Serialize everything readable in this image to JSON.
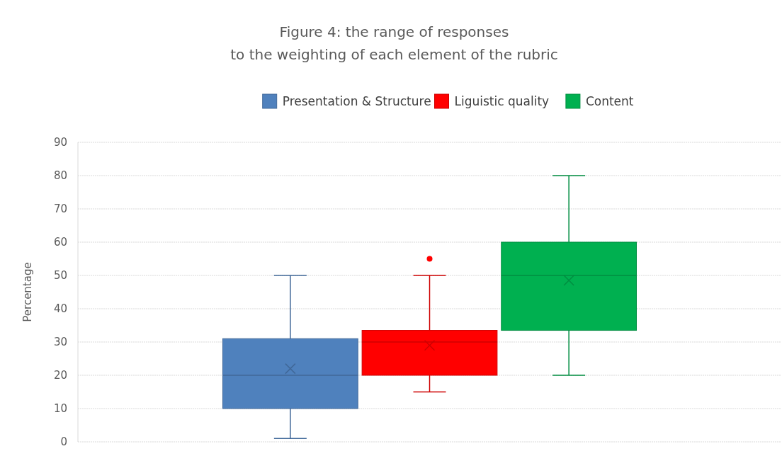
{
  "chart_data": {
    "type": "box",
    "title": "Figure 4: the range of responses\nto the weighting of each element of the rubric",
    "ylabel": "Percentage",
    "categories": [
      null
    ],
    "series": [
      {
        "name": "Presentation & Structure",
        "color": "#4f81bd",
        "boxes": [
          {
            "low": 1,
            "q1": 10,
            "median": 20,
            "q3": 31,
            "high": 50,
            "mean": 22
          }
        ]
      },
      {
        "name": "Liguistic quality",
        "color": "#ff0000",
        "boxes": [
          {
            "low": 15,
            "q1": 20,
            "median": 30,
            "q3": 33.5,
            "high": 50,
            "mean": 29,
            "outliers": [
              55
            ]
          }
        ]
      },
      {
        "name": "Content",
        "color": "#00b050",
        "boxes": [
          {
            "low": 20,
            "q1": 33.5,
            "median": 50,
            "q3": 60,
            "high": 80,
            "mean": 48.5
          }
        ]
      }
    ],
    "ylim": [
      0,
      90
    ],
    "yticks": [
      0,
      10,
      20,
      30,
      40,
      50,
      60,
      70,
      80,
      90
    ],
    "grid": "y",
    "legend": "top"
  }
}
